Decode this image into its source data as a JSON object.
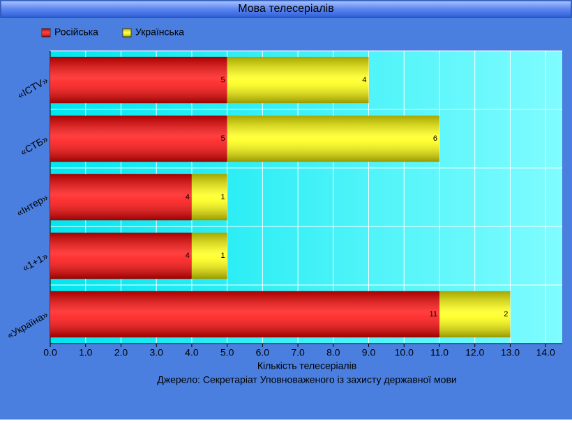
{
  "chart_data": {
    "type": "stacked_bar_horizontal",
    "title": "Мова телесеріалів",
    "categories": [
      "«ICTV»",
      "«СТБ»",
      "«Інтер»",
      "«1+1»",
      "«Україна»"
    ],
    "series": [
      {
        "name": "Російська",
        "color": "#ff0000",
        "values": [
          5,
          5,
          4,
          4,
          11
        ]
      },
      {
        "name": "Українська",
        "color": "#ffff00",
        "values": [
          4,
          6,
          1,
          1,
          2
        ]
      }
    ],
    "xlim": [
      0,
      14.47
    ],
    "xticks": [
      {
        "value": 0,
        "label": "0.0"
      },
      {
        "value": 1,
        "label": "1.0"
      },
      {
        "value": 2,
        "label": "2.0"
      },
      {
        "value": 3,
        "label": "3.0"
      },
      {
        "value": 4,
        "label": "4.0"
      },
      {
        "value": 5,
        "label": "5.0"
      },
      {
        "value": 6,
        "label": "6.0"
      },
      {
        "value": 7,
        "label": "7.0"
      },
      {
        "value": 8,
        "label": "8.0"
      },
      {
        "value": 9,
        "label": "9.0"
      },
      {
        "value": 10,
        "label": "10.0"
      },
      {
        "value": 11,
        "label": "11.0"
      },
      {
        "value": 12,
        "label": "12.0"
      },
      {
        "value": 13,
        "label": "13.0"
      },
      {
        "value": 14,
        "label": "14.0"
      }
    ],
    "xlabel": "Кількість телесеріалів",
    "source": "Джерело: Секретаріат Уповноваженого із захисту державної мови",
    "grid": true,
    "legend": "top-left"
  }
}
